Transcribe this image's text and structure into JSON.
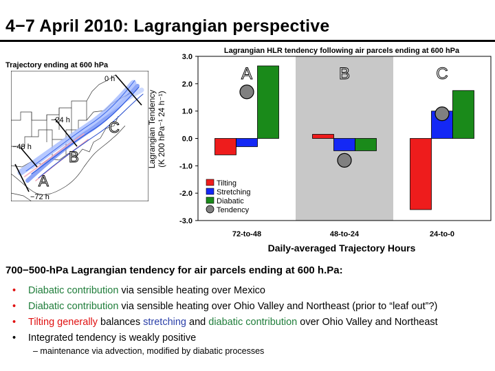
{
  "slide_title": "4−7 April 2010: Lagrangian perspective",
  "map": {
    "title": "Trajectory ending at 600 hPa",
    "time_labels": [
      "0 h",
      "−24 h",
      "−48 h",
      "−72 h"
    ],
    "region_labels": [
      "A",
      "B",
      "C"
    ]
  },
  "chart_data": {
    "type": "bar",
    "title": "Lagrangian HLR tendency following air parcels ending at 600 hPa",
    "xlabel": "Daily-averaged Trajectory Hours",
    "ylabel_lines": [
      "Lagrangian Tendency",
      "(K 200 hPa⁻¹ 24 h⁻¹)"
    ],
    "categories": [
      "72-to-48",
      "48-to-24",
      "24-to-0"
    ],
    "region_labels": [
      "A",
      "B",
      "C"
    ],
    "highlighted_category": "48-to-24",
    "ylim": [
      -3.0,
      3.0
    ],
    "yticks": [
      "3.0",
      "2.0",
      "1.0",
      "0.0",
      "-1.0",
      "-2.0",
      "-3.0"
    ],
    "series": [
      {
        "name": "Tilting",
        "color": "#ee1c1c",
        "values": [
          -0.6,
          0.15,
          -2.6
        ]
      },
      {
        "name": "Stretching",
        "color": "#1428f5",
        "values": [
          -0.3,
          -0.45,
          1.0
        ]
      },
      {
        "name": "Diabatic",
        "color": "#1a8a1a",
        "values": [
          2.65,
          -0.45,
          1.75
        ]
      }
    ],
    "tendency": {
      "name": "Tendency",
      "color": "#808080",
      "values": [
        1.7,
        -0.8,
        0.9
      ]
    },
    "legend_position": "bottom-left"
  },
  "summary": {
    "heading": "700−500-hPa Lagrangian tendency for air parcels ending at 600 h.Pa:",
    "bullet_symbol": "•",
    "bullets": [
      {
        "a": "Diabatic contribution",
        "b": " via sensible heating over Mexico"
      },
      {
        "a": "Diabatic contribution",
        "b": " via sensible heating over Ohio Valley and Northeast (prior to “leaf out”?)"
      },
      {
        "a": "Tilting generally",
        "b": " balances ",
        "c": "stretching",
        "d": " and ",
        "e": "diabatic contribution",
        "f": " over Ohio Valley and Northeast"
      },
      {
        "a": "Integrated tendency is weakly positive"
      }
    ],
    "sub_bullet": "–  maintenance via advection, modified by diabatic processes"
  }
}
